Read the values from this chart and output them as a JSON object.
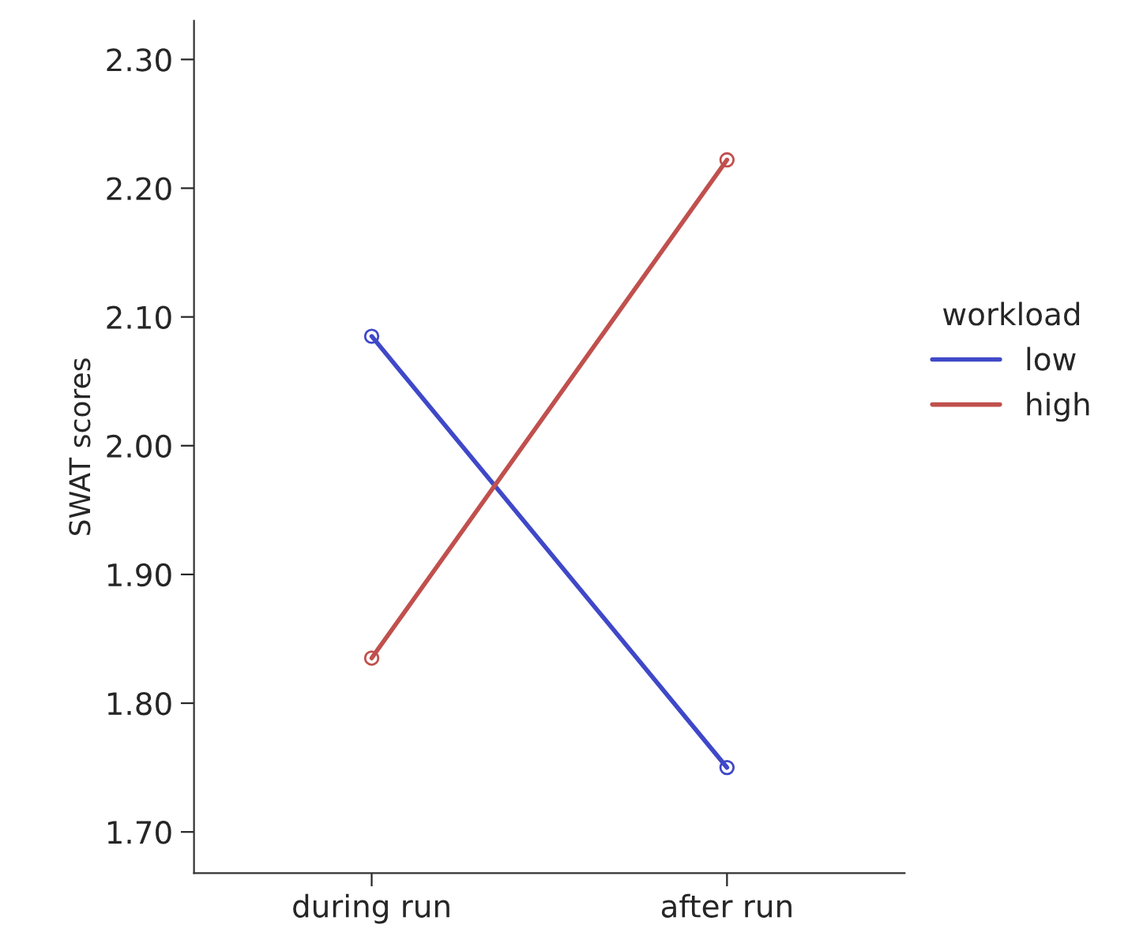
{
  "chart_data": {
    "type": "line",
    "ylabel": "SWAT scores",
    "legend_title": "workload",
    "categories": [
      "during run",
      "after run"
    ],
    "series": [
      {
        "name": "low",
        "color": "#3f48c8",
        "values": [
          2.085,
          1.75
        ]
      },
      {
        "name": "high",
        "color": "#c0504d",
        "values": [
          1.835,
          2.222
        ]
      }
    ],
    "ylim": [
      1.668,
      2.33
    ],
    "yticks": [
      {
        "value": 1.7,
        "label": "1.70"
      },
      {
        "value": 1.8,
        "label": "1.80"
      },
      {
        "value": 1.9,
        "label": "1.90"
      },
      {
        "value": 2.0,
        "label": "2.00"
      },
      {
        "value": 2.1,
        "label": "2.10"
      },
      {
        "value": 2.2,
        "label": "2.20"
      },
      {
        "value": 2.3,
        "label": "2.30"
      }
    ],
    "legend": "right",
    "marker": "circle",
    "line_style": "solid",
    "grid": false
  }
}
